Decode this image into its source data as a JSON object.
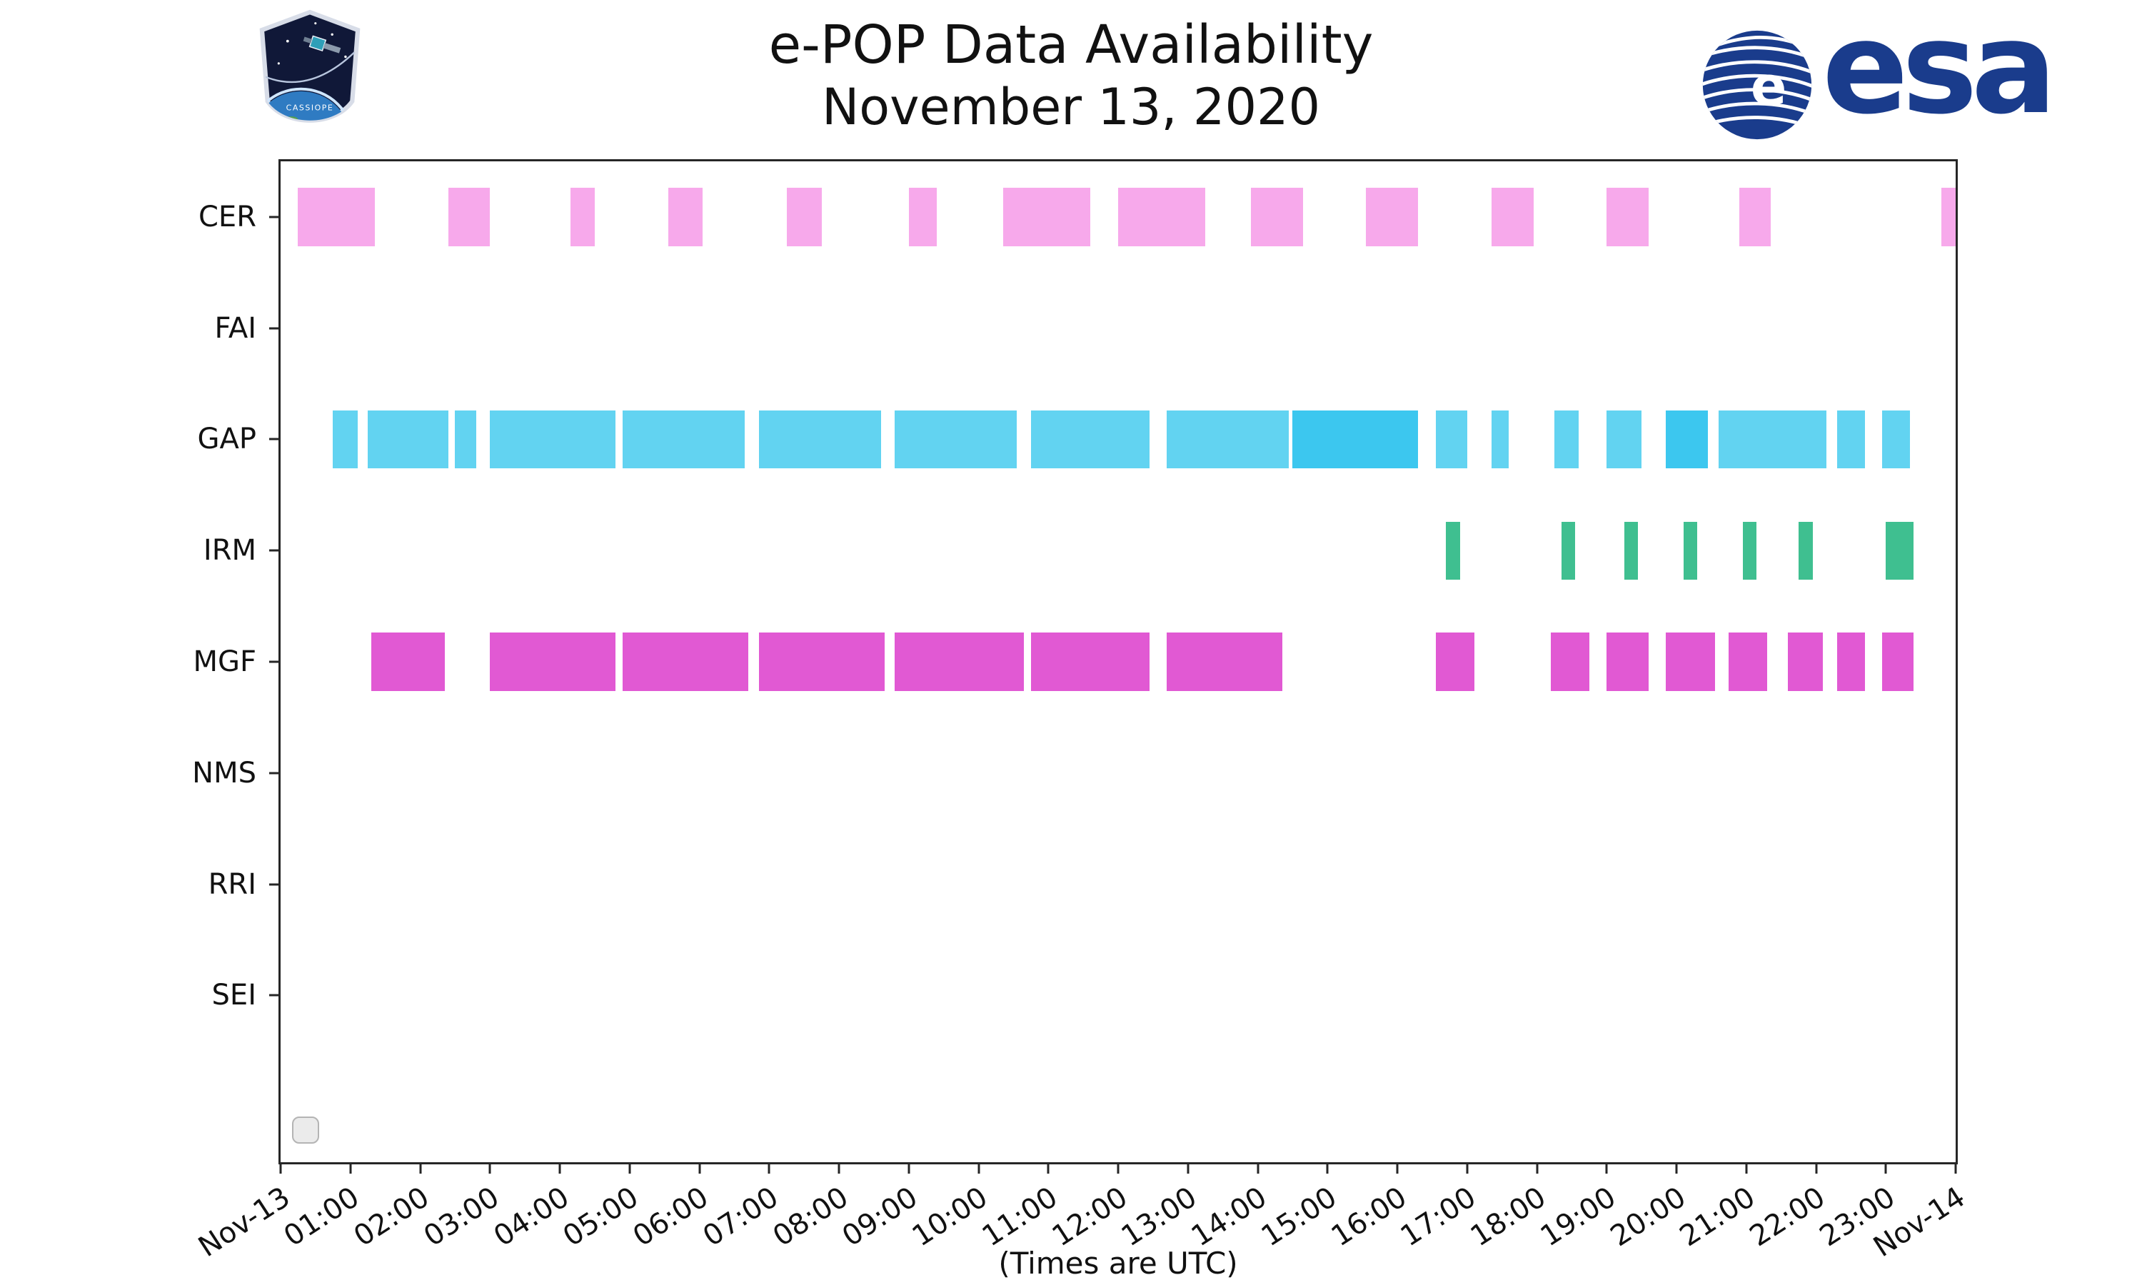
{
  "header": {
    "title_line1": "e-POP Data Availability",
    "title_line2": "November 13, 2020",
    "esa_wordmark": "esa",
    "cassiope_label": "CASSIOPE"
  },
  "axis": {
    "x_tick_labels": [
      "Nov-13",
      "01:00",
      "02:00",
      "03:00",
      "04:00",
      "05:00",
      "06:00",
      "07:00",
      "08:00",
      "09:00",
      "10:00",
      "11:00",
      "12:00",
      "13:00",
      "14:00",
      "15:00",
      "16:00",
      "17:00",
      "18:00",
      "19:00",
      "20:00",
      "21:00",
      "22:00",
      "23:00",
      "Nov-14"
    ],
    "y_labels": [
      "CER",
      "FAI",
      "GAP",
      "IRM",
      "MGF",
      "NMS",
      "RRI",
      "SEI"
    ],
    "x_axis_caption": "(Times are UTC)"
  },
  "chart_data": {
    "type": "bar",
    "subtype": "broken-bar availability timeline",
    "title": "e-POP Data Availability — November 13, 2020",
    "xlabel": "(Times are UTC)",
    "x_unit": "hours UTC on 2020-11-13",
    "xlim": [
      0,
      24
    ],
    "y_axis_units": 9,
    "bar_height_pct": 5.8,
    "grid": false,
    "legend": "none",
    "rows": [
      {
        "label": "CER",
        "color": "#F7A9EB",
        "intervals": [
          [
            0.25,
            1.35
          ],
          [
            2.4,
            3.0
          ],
          [
            4.15,
            4.5
          ],
          [
            5.55,
            6.05
          ],
          [
            7.25,
            7.75
          ],
          [
            9.0,
            9.4
          ],
          [
            10.35,
            11.6
          ],
          [
            12.0,
            13.25
          ],
          [
            13.9,
            14.65
          ],
          [
            15.55,
            16.3
          ],
          [
            17.35,
            17.95
          ],
          [
            19.0,
            19.6
          ],
          [
            20.9,
            21.35
          ],
          [
            23.8,
            24.0
          ]
        ]
      },
      {
        "label": "FAI",
        "color": "#F2C894",
        "intervals": []
      },
      {
        "label": "GAP",
        "color": "#62D3F1",
        "dark_color": "#3CC7EF",
        "intervals": [
          [
            0.75,
            1.1
          ],
          [
            1.25,
            2.4
          ],
          [
            2.5,
            2.8
          ],
          [
            3.0,
            4.8
          ],
          [
            4.9,
            6.65
          ],
          [
            6.85,
            8.6
          ],
          [
            8.8,
            10.55
          ],
          [
            10.75,
            12.45
          ],
          [
            12.7,
            14.45
          ],
          [
            14.5,
            16.3,
            "dark"
          ],
          [
            16.55,
            17.0
          ],
          [
            17.35,
            17.6
          ],
          [
            18.25,
            18.6
          ],
          [
            19.0,
            19.5
          ],
          [
            19.85,
            20.45,
            "dark"
          ],
          [
            20.6,
            22.15
          ],
          [
            22.3,
            22.7
          ],
          [
            22.95,
            23.35
          ]
        ]
      },
      {
        "label": "IRM",
        "color": "#3FBF90",
        "intervals": [
          [
            16.7,
            16.9
          ],
          [
            18.35,
            18.55
          ],
          [
            19.25,
            19.45
          ],
          [
            20.1,
            20.3
          ],
          [
            20.95,
            21.15
          ],
          [
            21.75,
            21.95
          ],
          [
            23.0,
            23.4
          ]
        ]
      },
      {
        "label": "MGF",
        "color": "#E159D3",
        "intervals": [
          [
            1.3,
            2.35
          ],
          [
            3.0,
            4.8
          ],
          [
            4.9,
            6.7
          ],
          [
            6.85,
            8.65
          ],
          [
            8.8,
            10.65
          ],
          [
            10.75,
            12.45
          ],
          [
            12.7,
            14.35
          ],
          [
            16.55,
            17.1
          ],
          [
            18.2,
            18.75
          ],
          [
            19.0,
            19.6
          ],
          [
            19.85,
            20.55
          ],
          [
            20.75,
            21.3
          ],
          [
            21.6,
            22.1
          ],
          [
            22.3,
            22.7
          ],
          [
            22.95,
            23.4
          ]
        ]
      },
      {
        "label": "NMS",
        "color": "#9F9F9F",
        "intervals": []
      },
      {
        "label": "RRI",
        "color": "#9F9F9F",
        "intervals": []
      },
      {
        "label": "SEI",
        "color": "#9F9F9F",
        "intervals": []
      }
    ]
  }
}
